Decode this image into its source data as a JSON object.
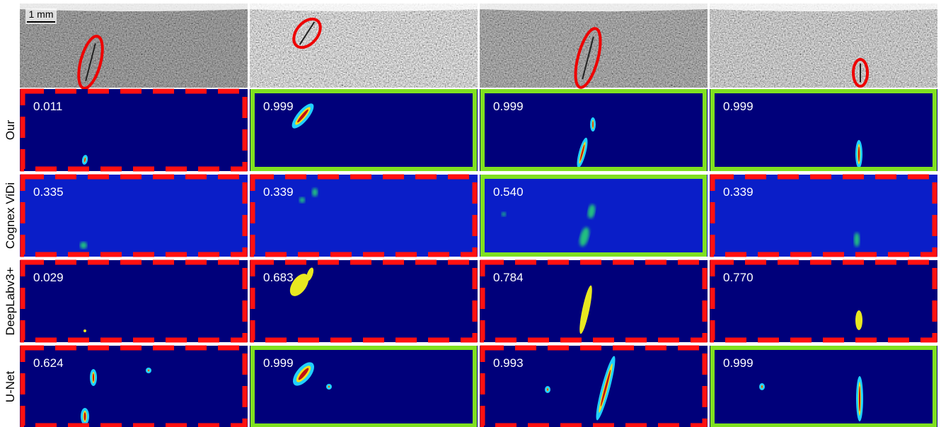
{
  "scale_bar": "1 mm",
  "rows": [
    {
      "label": "Our",
      "cells": [
        {
          "score": "0.011",
          "frame": "#ff1010"
        },
        {
          "score": "0.999",
          "frame": "#7fe020"
        },
        {
          "score": "0.999",
          "frame": "#7fe020"
        },
        {
          "score": "0.999",
          "frame": "#7fe020"
        }
      ]
    },
    {
      "label": "Cognex ViDi",
      "cells": [
        {
          "score": "0.335",
          "frame": "#ff1010"
        },
        {
          "score": "0.339",
          "frame": "#ff1010"
        },
        {
          "score": "0.540",
          "frame": "#7fe020"
        },
        {
          "score": "0.339",
          "frame": "#ff1010"
        }
      ]
    },
    {
      "label": "DeepLabv3+",
      "cells": [
        {
          "score": "0.029",
          "frame": "#ff1010"
        },
        {
          "score": "0.683",
          "frame": "#ff1010"
        },
        {
          "score": "0.784",
          "frame": "#ff1010"
        },
        {
          "score": "0.770",
          "frame": "#ff1010"
        }
      ]
    },
    {
      "label": "U-Net",
      "cells": [
        {
          "score": "0.624",
          "frame": "#ff1010"
        },
        {
          "score": "0.999",
          "frame": "#7fe020"
        },
        {
          "score": "0.993",
          "frame": "#ff1010"
        },
        {
          "score": "0.999",
          "frame": "#7fe020"
        }
      ]
    }
  ]
}
